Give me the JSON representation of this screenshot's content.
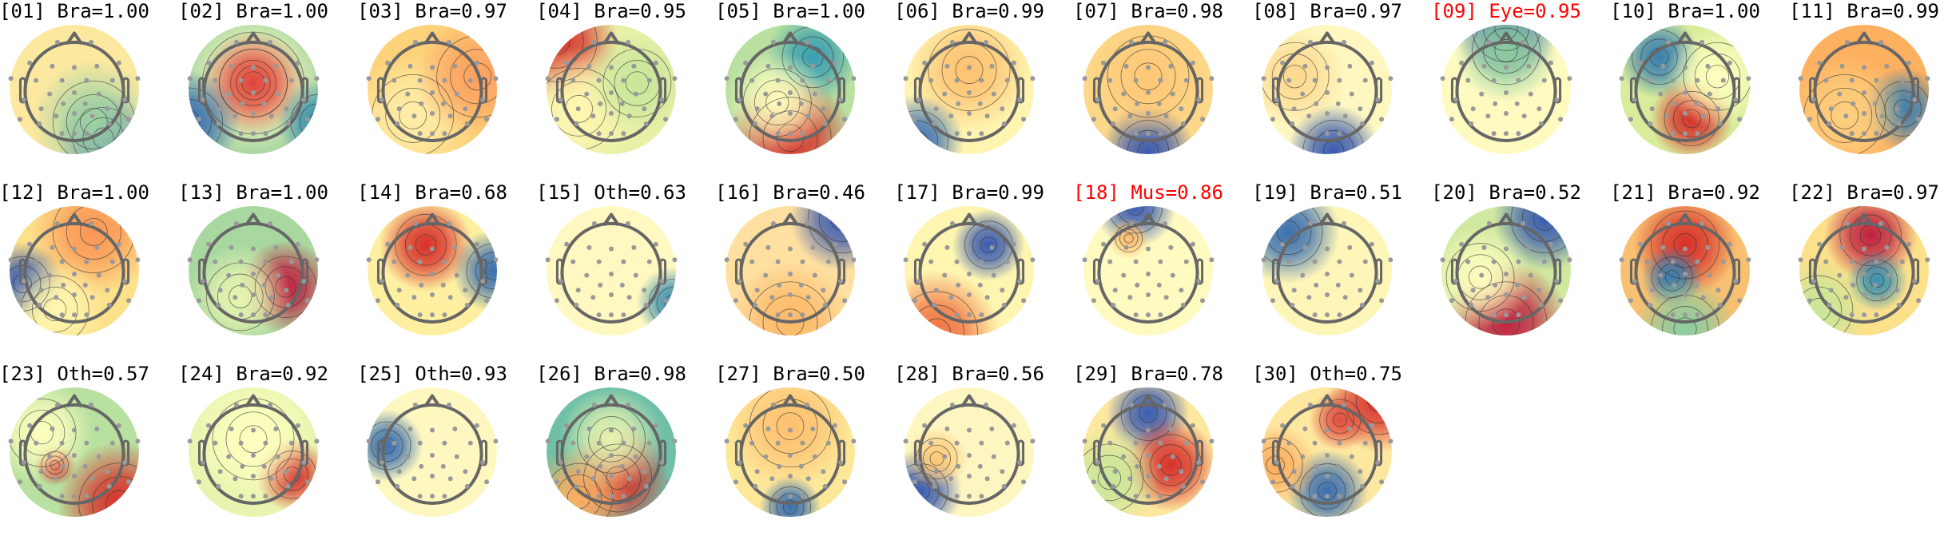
{
  "components": [
    {
      "label": "[01] Bra=1.00",
      "color": "#000000"
    },
    {
      "label": "[02] Bra=1.00",
      "color": "#000000"
    },
    {
      "label": "[03] Bra=0.97",
      "color": "#000000"
    },
    {
      "label": "[04] Bra=0.95",
      "color": "#000000"
    },
    {
      "label": "[05] Bra=1.00",
      "color": "#000000"
    },
    {
      "label": "[06] Bra=0.99",
      "color": "#000000"
    },
    {
      "label": "[07] Bra=0.98",
      "color": "#000000"
    },
    {
      "label": "[08] Bra=0.97",
      "color": "#000000"
    },
    {
      "label": "[09] Eye=0.95",
      "color": "#ff0000"
    },
    {
      "label": "[10] Bra=1.00",
      "color": "#000000"
    },
    {
      "label": "[11] Bra=0.99",
      "color": "#000000"
    },
    {
      "label": "[12] Bra=1.00",
      "color": "#000000"
    },
    {
      "label": "[13] Bra=1.00",
      "color": "#000000"
    },
    {
      "label": "[14] Bra=0.68",
      "color": "#000000"
    },
    {
      "label": "[15] Oth=0.63",
      "color": "#000000"
    },
    {
      "label": "[16] Bra=0.46",
      "color": "#000000"
    },
    {
      "label": "[17] Bra=0.99",
      "color": "#000000"
    },
    {
      "label": "[18] Mus=0.86",
      "color": "#ff0000"
    },
    {
      "label": "[19] Bra=0.51",
      "color": "#000000"
    },
    {
      "label": "[20] Bra=0.52",
      "color": "#000000"
    },
    {
      "label": "[21] Bra=0.92",
      "color": "#000000"
    },
    {
      "label": "[22] Bra=0.97",
      "color": "#000000"
    },
    {
      "label": "[23] Oth=0.57",
      "color": "#000000"
    },
    {
      "label": "[24] Bra=0.92",
      "color": "#000000"
    },
    {
      "label": "[25] Oth=0.93",
      "color": "#000000"
    },
    {
      "label": "[26] Bra=0.98",
      "color": "#000000"
    },
    {
      "label": "[27] Bra=0.50",
      "color": "#000000"
    },
    {
      "label": "[28] Bra=0.56",
      "color": "#000000"
    },
    {
      "label": "[29] Bra=0.78",
      "color": "#000000"
    },
    {
      "label": "[30] Oth=0.75",
      "color": "#000000"
    }
  ],
  "colormap": [
    "#3b4cb0",
    "#3a9fb0",
    "#abdda4",
    "#ffffbf",
    "#fdae61",
    "#d7302a",
    "#c0203f"
  ],
  "head_color": "#666666",
  "electrode_color": "#999999"
}
